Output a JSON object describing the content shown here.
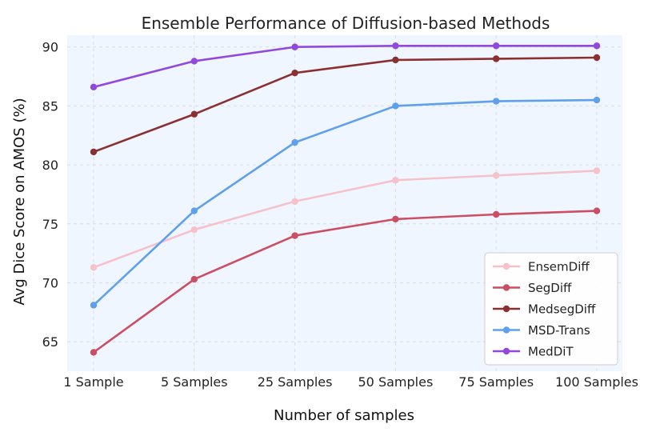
{
  "chart_data": {
    "type": "line",
    "title": "Ensemble Performance of Diffusion-based Methods",
    "xlabel": "Number of samples",
    "ylabel": "Avg Dice Score on AMOS (%)",
    "categories": [
      "1 Sample",
      "5 Samples",
      "25 Samples",
      "50 Samples",
      "75 Samples",
      "100 Samples"
    ],
    "ylim": [
      62.5,
      91.0
    ],
    "yticks": [
      65,
      70,
      75,
      80,
      85,
      90
    ],
    "grid": true,
    "legend_position": "lower-right",
    "series": [
      {
        "name": "EnsemDiff",
        "color": "#f4c2c8",
        "values": [
          71.3,
          74.5,
          76.9,
          78.7,
          79.1,
          79.5
        ]
      },
      {
        "name": "SegDiff",
        "color": "#cc4e63",
        "values": [
          64.1,
          70.3,
          74.0,
          75.4,
          75.8,
          76.1
        ]
      },
      {
        "name": "MedsegDiff",
        "color": "#8b3030",
        "values": [
          81.1,
          84.3,
          87.8,
          88.9,
          89.0,
          89.1
        ]
      },
      {
        "name": "MSD-Trans",
        "color": "#5ea0ee",
        "values": [
          68.1,
          76.1,
          81.9,
          85.0,
          85.4,
          85.5
        ]
      },
      {
        "name": "MedDiT",
        "color": "#9148dc",
        "values": [
          86.6,
          88.8,
          90.0,
          90.1,
          90.1,
          90.1
        ]
      }
    ]
  }
}
